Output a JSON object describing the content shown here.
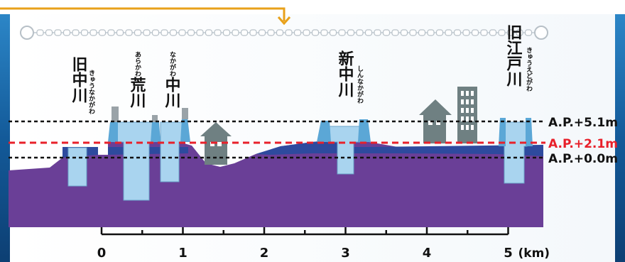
{
  "rivers": [
    {
      "name": "旧中川",
      "reading": "きゅうなかがわ"
    },
    {
      "name": "荒川",
      "reading": "あらかわ"
    },
    {
      "name": "中川",
      "reading": "なかがわ"
    },
    {
      "name": "新中川",
      "reading": "しんなかがわ"
    },
    {
      "name": "旧江戸川",
      "reading": "きゅうえどがわ"
    }
  ],
  "levels": [
    {
      "label": "A.P.+5.1m",
      "value": 5.1,
      "color": "#111111"
    },
    {
      "label": "A.P.+2.1m",
      "value": 2.1,
      "color": "#e8202a"
    },
    {
      "label": "A.P.+0.0m",
      "value": 0.0,
      "color": "#111111"
    }
  ],
  "axis": {
    "ticks": [
      "0",
      "1",
      "2",
      "3",
      "4",
      "5"
    ],
    "unit": "(km)",
    "range_km": [
      0,
      5
    ]
  },
  "colors": {
    "ground": "#6a3f97",
    "water": "#2e4a9e",
    "river_channel": "#a9d4ef",
    "levee": "#5ba7d6",
    "building": "#6f8082",
    "sea_bg": "#1c6fae",
    "top_line": "#e8a11a",
    "red_line": "#e8202a"
  },
  "icons": [
    "house-icon",
    "building-icon",
    "chain-line",
    "orange-arrow"
  ]
}
